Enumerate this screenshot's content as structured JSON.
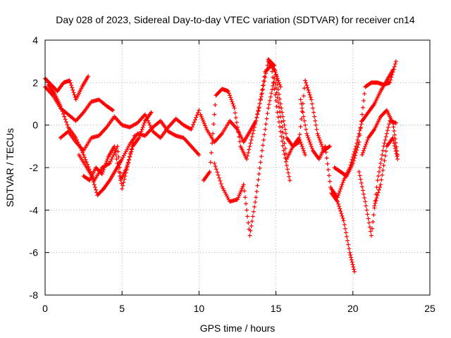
{
  "chart_data": {
    "type": "scatter",
    "title": "Day 028 of 2023, Sidereal Day-to-day VTEC variation (SDTVAR) for receiver cn14",
    "xlabel": "GPS time / hours",
    "ylabel": "SDTVAR / TECUs",
    "xlim": [
      0,
      25
    ],
    "ylim": [
      -8,
      4
    ],
    "xticks": [
      0,
      5,
      10,
      15,
      20,
      25
    ],
    "yticks": [
      -8,
      -6,
      -4,
      -2,
      0,
      2,
      4
    ],
    "grid": true,
    "marker": "plus",
    "color": "#ff0000",
    "series": [
      {
        "x": [
          0.0,
          0.4,
          0.8,
          1.2,
          1.6,
          2.0,
          2.4,
          2.8
        ],
        "y": [
          2.2,
          1.9,
          1.6,
          2.0,
          2.1,
          1.2,
          1.8,
          2.3
        ]
      },
      {
        "x": [
          0.0,
          0.5,
          1.0,
          1.5,
          2.0,
          2.5,
          3.0,
          3.5,
          4.0,
          4.4
        ],
        "y": [
          1.8,
          1.4,
          0.8,
          0.5,
          0.2,
          0.6,
          1.1,
          1.2,
          0.9,
          0.7
        ]
      },
      {
        "x": [
          0.2,
          0.6,
          1.0,
          1.5,
          2.0,
          2.5,
          3.0,
          3.4,
          3.8,
          4.2,
          4.6,
          5.0,
          5.5,
          6.0,
          6.5,
          7.0,
          7.5,
          8.0,
          8.5,
          9.0,
          9.5,
          10.0
        ],
        "y": [
          1.9,
          1.5,
          0.9,
          -0.1,
          -0.6,
          -1.4,
          -2.3,
          -3.3,
          -3.0,
          -2.6,
          -2.1,
          -1.6,
          -0.9,
          -0.4,
          -0.5,
          -0.1,
          0.2,
          -0.3,
          -0.5,
          -0.6,
          -1.0,
          -1.4
        ]
      },
      {
        "x": [
          1.0,
          1.5,
          2.0,
          2.5,
          3.0,
          3.5,
          4.0,
          4.5,
          5.0,
          5.5,
          6.0,
          6.5,
          7.0,
          7.5,
          8.0,
          8.5,
          9.0,
          9.5,
          10.0
        ],
        "y": [
          -0.6,
          -0.3,
          -0.8,
          -1.2,
          -0.6,
          -0.5,
          -0.1,
          0.4,
          0.0,
          -0.1,
          0.1,
          0.5,
          -0.3,
          -0.6,
          -0.1,
          0.3,
          0.0,
          -0.2,
          0.7
        ]
      },
      {
        "x": [
          2.5,
          2.9,
          3.3,
          3.7,
          4.1,
          4.5,
          4.9,
          5.3,
          5.7,
          6.1,
          6.5,
          6.9
        ],
        "y": [
          -2.4,
          -2.6,
          -2.0,
          -2.3,
          -1.5,
          -1.0,
          -2.6,
          -2.0,
          -1.0,
          -0.6,
          0.2,
          0.6
        ]
      },
      {
        "x": [
          2.2,
          2.7,
          3.2,
          3.7,
          4.2,
          4.7,
          5.0,
          5.4,
          5.8
        ],
        "y": [
          -1.4,
          -2.0,
          -2.6,
          -2.0,
          -1.8,
          -1.0,
          -3.0,
          -1.8,
          -0.5
        ]
      },
      {
        "x": [
          10.1,
          10.5,
          11.0,
          11.5,
          12.0,
          12.5,
          12.9,
          13.3,
          13.7,
          14.1,
          14.5,
          14.9,
          15.3
        ],
        "y": [
          0.5,
          -0.2,
          -0.8,
          -0.4,
          0.2,
          -0.2,
          -0.8,
          -0.3,
          0.2,
          1.5,
          3.0,
          2.6,
          1.8
        ]
      },
      {
        "x": [
          10.3,
          10.7,
          11.1,
          11.5,
          11.9,
          12.3,
          12.7,
          13.1,
          13.5,
          13.9,
          14.3,
          14.7,
          15.1,
          15.5,
          15.9
        ],
        "y": [
          -2.6,
          -2.2,
          1.4,
          1.7,
          1.6,
          0.8,
          -1.0,
          -1.6,
          -0.4,
          0.8,
          2.5,
          2.8,
          0.6,
          -1.2,
          -2.6
        ]
      },
      {
        "x": [
          11.0,
          11.5,
          12.0,
          12.5,
          12.9,
          13.3,
          13.7,
          14.1,
          14.5,
          14.9,
          15.3,
          15.7,
          16.1,
          16.5,
          16.9
        ],
        "y": [
          -1.8,
          -2.9,
          -3.6,
          -3.5,
          -2.8,
          -5.2,
          -3.4,
          -1.2,
          0.8,
          2.2,
          0.4,
          -1.6,
          -1.0,
          -0.6,
          -1.4
        ]
      },
      {
        "x": [
          14.5,
          14.9,
          15.3,
          15.7,
          16.1,
          16.5,
          16.9,
          17.3,
          17.7,
          18.1,
          18.5
        ],
        "y": [
          3.1,
          2.8,
          1.0,
          -0.6,
          -1.0,
          -0.8,
          2.1,
          1.2,
          -0.4,
          -1.2,
          -1.0
        ]
      },
      {
        "x": [
          16.6,
          17.0,
          17.4,
          17.8,
          18.2,
          18.6,
          19.0,
          19.4,
          19.8,
          20.1
        ],
        "y": [
          1.2,
          -0.4,
          -1.2,
          -1.6,
          -1.0,
          -3.2,
          -3.6,
          -4.5,
          -6.0,
          -6.9
        ]
      },
      {
        "x": [
          18.8,
          19.2,
          19.6,
          20.0,
          20.4,
          20.8,
          21.2,
          21.6,
          22.0,
          22.4,
          22.8
        ],
        "y": [
          -2.0,
          -2.2,
          -2.4,
          -1.8,
          -0.8,
          1.8,
          2.0,
          2.0,
          1.9,
          2.0,
          3.0
        ]
      },
      {
        "x": [
          18.6,
          19.0,
          19.4,
          19.8,
          20.2,
          20.6,
          21.0,
          21.4,
          21.8,
          22.2,
          22.6
        ],
        "y": [
          -3.0,
          -3.4,
          -2.6,
          -2.0,
          -1.0,
          0.2,
          0.6,
          1.0,
          1.6,
          2.1,
          2.6
        ]
      },
      {
        "x": [
          20.4,
          20.8,
          21.2,
          21.6,
          22.0,
          22.4,
          22.8
        ],
        "y": [
          -2.2,
          -3.6,
          -5.2,
          -2.6,
          -1.0,
          0.2,
          0.1
        ]
      },
      {
        "x": [
          21.4,
          21.8,
          22.2,
          22.6,
          22.9
        ],
        "y": [
          -3.8,
          -2.8,
          -1.0,
          -0.6,
          -1.6
        ]
      },
      {
        "x": [
          20.6,
          21.0,
          21.4,
          21.8,
          22.2,
          22.6,
          22.9
        ],
        "y": [
          -1.4,
          -0.6,
          -0.2,
          0.4,
          0.7,
          0.1,
          -1.4
        ]
      }
    ]
  }
}
